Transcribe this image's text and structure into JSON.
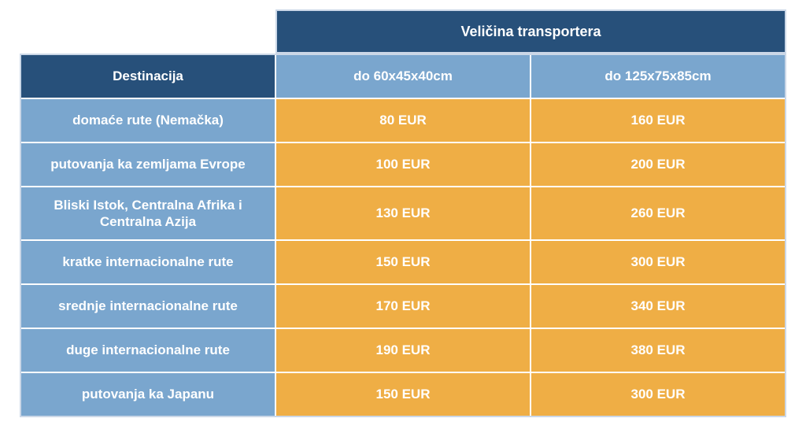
{
  "table": {
    "title": "Veličina transportera",
    "columns": {
      "destination_header": "Destinacija",
      "size_small": "do 60x45x40cm",
      "size_large": "do 125x75x85cm"
    },
    "rows": [
      {
        "destination": "domaće rute (Nemačka)",
        "price_small": "80 EUR",
        "price_large": "160 EUR"
      },
      {
        "destination": "putovanja ka zemljama Evrope",
        "price_small": "100 EUR",
        "price_large": "200 EUR"
      },
      {
        "destination": "Bliski Istok, Centralna Afrika i Centralna Azija",
        "price_small": "130 EUR",
        "price_large": "260 EUR"
      },
      {
        "destination": "kratke internacionalne rute",
        "price_small": "150 EUR",
        "price_large": "300 EUR"
      },
      {
        "destination": "srednje internacionalne rute",
        "price_small": "170 EUR",
        "price_large": "340 EUR"
      },
      {
        "destination": "duge internacionalne rute",
        "price_small": "190 EUR",
        "price_large": "380 EUR"
      },
      {
        "destination": "putovanja ka Japanu",
        "price_small": "150 EUR",
        "price_large": "300 EUR"
      }
    ],
    "colors": {
      "header_dark": "#27507A",
      "cell_blue": "#7AA6CE",
      "cell_orange": "#EFAE45",
      "text": "#FFFFFF",
      "border_pale": "#CBD7E7"
    }
  },
  "chart_data": {
    "type": "table",
    "title": "Veličina transportera",
    "row_header": "Destinacija",
    "categories": [
      "domaće rute (Nemačka)",
      "putovanja ka zemljama Evrope",
      "Bliski Istok, Centralna Afrika i Centralna Azija",
      "kratke internacionalne rute",
      "srednje internacionalne rute",
      "duge internacionalne rute",
      "putovanja ka Japanu"
    ],
    "series": [
      {
        "name": "do 60x45x40cm",
        "unit": "EUR",
        "values": [
          80,
          100,
          130,
          150,
          170,
          190,
          150
        ]
      },
      {
        "name": "do 125x75x85cm",
        "unit": "EUR",
        "values": [
          160,
          200,
          260,
          300,
          340,
          380,
          300
        ]
      }
    ]
  }
}
